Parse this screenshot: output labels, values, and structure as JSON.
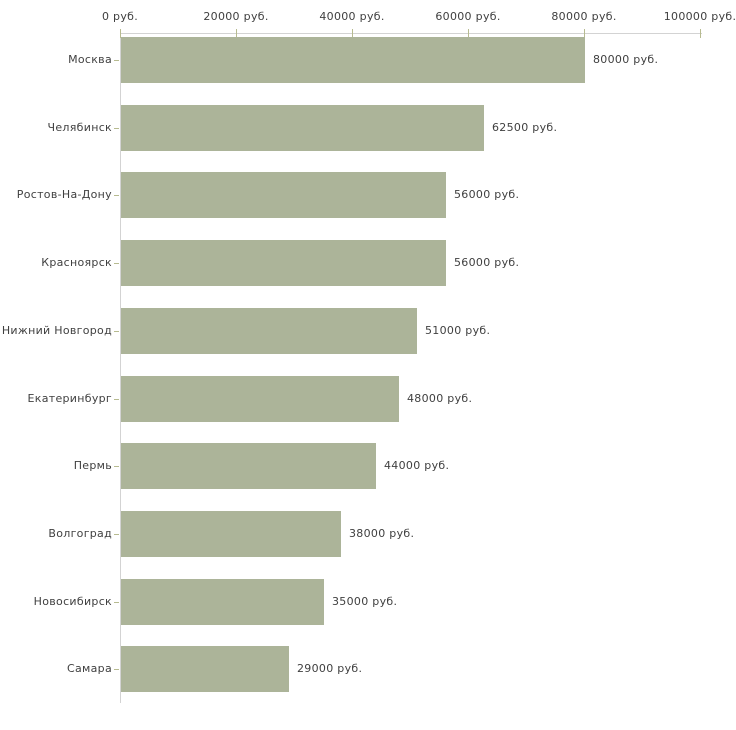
{
  "chart_data": {
    "type": "bar",
    "orientation": "horizontal",
    "title": "",
    "xlabel": "",
    "ylabel": "",
    "unit": "руб.",
    "xlim": [
      0,
      100000
    ],
    "grid": false,
    "legend": null,
    "categories": [
      "Москва",
      "Челябинск",
      "Ростов-На-Дону",
      "Красноярск",
      "Нижний Новгород",
      "Екатеринбург",
      "Пермь",
      "Волгоград",
      "Новосибирск",
      "Самара"
    ],
    "values": [
      80000,
      62500,
      56000,
      56000,
      51000,
      48000,
      44000,
      38000,
      35000,
      29000
    ],
    "value_labels": [
      "80000 руб.",
      "62500 руб.",
      "56000 руб.",
      "56000 руб.",
      "51000 руб.",
      "48000 руб.",
      "44000 руб.",
      "38000 руб.",
      "35000 руб.",
      "29000 руб."
    ],
    "x_ticks": [
      {
        "value": 0,
        "label": "0 руб."
      },
      {
        "value": 20000,
        "label": "20000 руб."
      },
      {
        "value": 40000,
        "label": "40000 руб."
      },
      {
        "value": 60000,
        "label": "60000 руб."
      },
      {
        "value": 80000,
        "label": "80000 руб."
      },
      {
        "value": 100000,
        "label": "100000 руб."
      }
    ],
    "colors": {
      "bar": "#acb499",
      "axis_line": "#d3d3d3",
      "tick_mark": "#b7bb90",
      "text": "#404040",
      "background": "#ffffff"
    }
  }
}
